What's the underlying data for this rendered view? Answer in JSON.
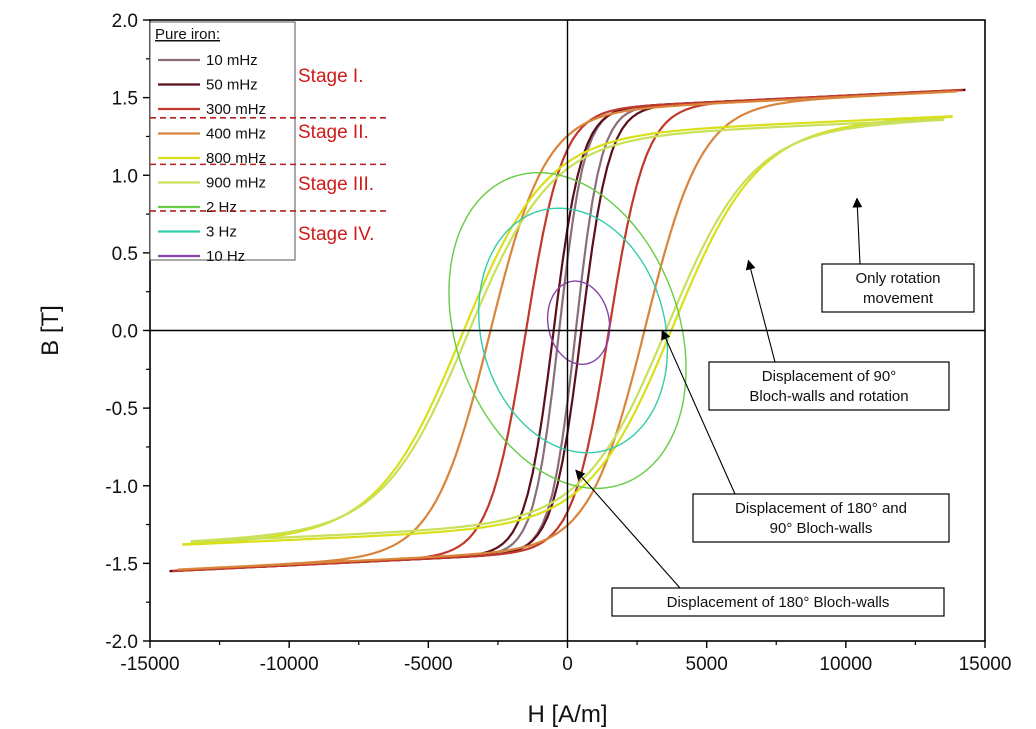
{
  "chart_data": {
    "type": "line",
    "title": "",
    "xlabel": "H [A/m]",
    "ylabel": "B [T]",
    "xlim": [
      -15000,
      15000
    ],
    "ylim": [
      -2.0,
      2.0
    ],
    "x_ticks": [
      "-15000",
      "-10000",
      "-5000",
      "0",
      "5000",
      "10000",
      "15000"
    ],
    "y_ticks": [
      "2.0",
      "1.5",
      "1.0",
      "0.5",
      "0.0",
      "-0.5",
      "-1.0",
      "-1.5",
      "-2.0"
    ],
    "grid": false,
    "zero_lines": true,
    "legend": {
      "title": "Pure iron:",
      "placement": "top-left",
      "entries": [
        {
          "label": "10 mHz",
          "color": "#8a6f7a"
        },
        {
          "label": "50 mHz",
          "color": "#5a0f1a"
        },
        {
          "label": "300 mHz",
          "color": "#c0392b"
        },
        {
          "label": "400 mHz",
          "color": "#d9843a"
        },
        {
          "label": "800 mHz",
          "color": "#d8e01a"
        },
        {
          "label": "900 mHz",
          "color": "#c8e05a"
        },
        {
          "label": "2 Hz",
          "color": "#66cc44"
        },
        {
          "label": "3 Hz",
          "color": "#33ccaa"
        },
        {
          "label": "10 Hz",
          "color": "#8844aa"
        }
      ]
    },
    "stages": [
      {
        "label": "Stage I.",
        "color": "#d11a1a"
      },
      {
        "label": "Stage II.",
        "color": "#d11a1a"
      },
      {
        "label": "Stage III.",
        "color": "#d11a1a"
      },
      {
        "label": "Stage IV.",
        "color": "#d11a1a"
      }
    ],
    "series": [
      {
        "name": "10 mHz",
        "color": "#8a6f7a",
        "shape": "loop",
        "Hmax": 14300,
        "Bmax": 1.55,
        "Hc": 300,
        "Br": 1.18,
        "Hk": 900
      },
      {
        "name": "50 mHz",
        "color": "#5a0f1a",
        "shape": "loop",
        "Hmax": 14300,
        "Bmax": 1.55,
        "Hc": 500,
        "Br": 1.2,
        "Hk": 1000
      },
      {
        "name": "300 mHz",
        "color": "#c0392b",
        "shape": "loop",
        "Hmax": 14200,
        "Bmax": 1.55,
        "Hc": 1500,
        "Br": 1.22,
        "Hk": 1300
      },
      {
        "name": "400 mHz",
        "color": "#d9843a",
        "shape": "loop",
        "Hmax": 14000,
        "Bmax": 1.54,
        "Hc": 2800,
        "Br": 1.3,
        "Hk": 2000
      },
      {
        "name": "800 mHz",
        "color": "#d8e01a",
        "shape": "loop",
        "Hmax": 13800,
        "Bmax": 1.38,
        "Hc": 3800,
        "Br": 1.1,
        "Hk": 3000
      },
      {
        "name": "900 mHz",
        "color": "#c8e05a",
        "shape": "loop",
        "Hmax": 13500,
        "Bmax": 1.36,
        "Hc": 3600,
        "Br": 1.0,
        "Hk": 3000
      },
      {
        "name": "2 Hz",
        "color": "#66cc44",
        "shape": "ellipse",
        "cx": 0,
        "cy": 0,
        "rx": 4000,
        "ry": 1.05,
        "tilt_deg": 20
      },
      {
        "name": "3 Hz",
        "color": "#33ccaa",
        "shape": "ellipse",
        "cx": 200,
        "cy": 0,
        "rx": 3300,
        "ry": 0.8,
        "tilt_deg": 15
      },
      {
        "name": "10 Hz",
        "color": "#8844aa",
        "shape": "ellipse",
        "cx": 400,
        "cy": 0.05,
        "rx": 1100,
        "ry": 0.27,
        "tilt_deg": 10
      }
    ],
    "annotations": [
      {
        "lines": [
          "Only rotation",
          "movement"
        ],
        "points_to": [
          10400,
          0.85
        ]
      },
      {
        "lines": [
          "Displacement of 90°",
          "Bloch-walls and rotation"
        ],
        "points_to": [
          6500,
          0.45
        ]
      },
      {
        "lines": [
          "Displacement of 180° and",
          "90° Bloch-walls"
        ],
        "points_to": [
          3400,
          0.0
        ]
      },
      {
        "lines": [
          "Displacement of 180° Bloch-walls"
        ],
        "points_to": [
          300,
          -0.9
        ]
      }
    ]
  }
}
